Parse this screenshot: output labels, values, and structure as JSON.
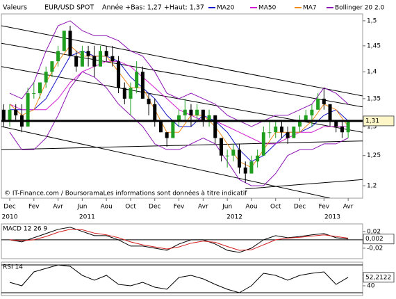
{
  "header": {
    "label": "Valeurs",
    "instrument": "EUR/USD SPOT",
    "range": "Année +Bas: 1,27 +Haut: 1,37"
  },
  "chart_data": [
    {
      "type": "candlestick",
      "x": [
        -0.5,
        0,
        0.5,
        1,
        1.5,
        2,
        2.5,
        3,
        3.5,
        4,
        4.5,
        5,
        5.5,
        6,
        6.5,
        7,
        7.5,
        8,
        8.5,
        9,
        9.5,
        10,
        10.5,
        11,
        11.5,
        12,
        12.5,
        13,
        13.5,
        14,
        14.5,
        15,
        15.5,
        16,
        16.5,
        17,
        17.5,
        18,
        18.5,
        19,
        19.5,
        20,
        20.5,
        21,
        21.5,
        22,
        22.5,
        23,
        23.5,
        24,
        24.5,
        25,
        25.5,
        26,
        26.5,
        27,
        27.5,
        28
      ],
      "open": [
        1.33,
        1.31,
        1.33,
        1.32,
        1.3,
        1.36,
        1.36,
        1.38,
        1.4,
        1.42,
        1.44,
        1.48,
        1.43,
        1.41,
        1.44,
        1.43,
        1.41,
        1.44,
        1.43,
        1.42,
        1.37,
        1.35,
        1.37,
        1.4,
        1.35,
        1.34,
        1.31,
        1.29,
        1.28,
        1.31,
        1.32,
        1.33,
        1.32,
        1.33,
        1.31,
        1.32,
        1.28,
        1.25,
        1.25,
        1.26,
        1.23,
        1.22,
        1.24,
        1.25,
        1.29,
        1.29,
        1.3,
        1.29,
        1.28,
        1.3,
        1.31,
        1.32,
        1.33,
        1.35,
        1.34,
        1.31,
        1.3,
        1.29
      ],
      "high": [
        1.34,
        1.34,
        1.34,
        1.34,
        1.37,
        1.38,
        1.38,
        1.41,
        1.42,
        1.45,
        1.48,
        1.49,
        1.44,
        1.45,
        1.45,
        1.45,
        1.45,
        1.45,
        1.45,
        1.43,
        1.38,
        1.38,
        1.42,
        1.41,
        1.36,
        1.35,
        1.31,
        1.29,
        1.31,
        1.33,
        1.35,
        1.34,
        1.34,
        1.33,
        1.33,
        1.32,
        1.28,
        1.26,
        1.27,
        1.27,
        1.24,
        1.25,
        1.26,
        1.3,
        1.31,
        1.31,
        1.31,
        1.3,
        1.3,
        1.32,
        1.33,
        1.34,
        1.36,
        1.37,
        1.34,
        1.31,
        1.31,
        1.31
      ],
      "low": [
        1.3,
        1.3,
        1.31,
        1.29,
        1.3,
        1.35,
        1.35,
        1.37,
        1.39,
        1.41,
        1.44,
        1.43,
        1.4,
        1.41,
        1.41,
        1.39,
        1.41,
        1.42,
        1.41,
        1.36,
        1.34,
        1.32,
        1.36,
        1.35,
        1.32,
        1.3,
        1.29,
        1.265,
        1.28,
        1.3,
        1.31,
        1.3,
        1.31,
        1.3,
        1.3,
        1.27,
        1.24,
        1.23,
        1.24,
        1.22,
        1.205,
        1.22,
        1.23,
        1.25,
        1.28,
        1.28,
        1.28,
        1.27,
        1.28,
        1.29,
        1.31,
        1.3,
        1.33,
        1.33,
        1.3,
        1.29,
        1.28,
        1.28
      ],
      "close": [
        1.31,
        1.33,
        1.32,
        1.3,
        1.36,
        1.36,
        1.38,
        1.4,
        1.42,
        1.44,
        1.48,
        1.43,
        1.41,
        1.44,
        1.43,
        1.41,
        1.44,
        1.43,
        1.42,
        1.37,
        1.35,
        1.37,
        1.4,
        1.35,
        1.34,
        1.31,
        1.29,
        1.28,
        1.31,
        1.32,
        1.33,
        1.32,
        1.33,
        1.31,
        1.32,
        1.28,
        1.25,
        1.25,
        1.26,
        1.23,
        1.22,
        1.24,
        1.25,
        1.29,
        1.29,
        1.3,
        1.29,
        1.28,
        1.3,
        1.31,
        1.32,
        1.33,
        1.35,
        1.34,
        1.31,
        1.3,
        1.29,
        1.31
      ],
      "up_color": "#1f9e1f",
      "down_color": "#000000",
      "xlim": [
        -0.69,
        29.2
      ],
      "xticks": [
        {
          "value": 0,
          "label": "Dec"
        },
        {
          "value": 2,
          "label": "Fev"
        },
        {
          "value": 4,
          "label": "Avr"
        },
        {
          "value": 6,
          "label": "Jun"
        },
        {
          "value": 8,
          "label": "Aou"
        },
        {
          "value": 10,
          "label": "Oct"
        },
        {
          "value": 12,
          "label": "Dec"
        },
        {
          "value": 14,
          "label": "Fev"
        },
        {
          "value": 16,
          "label": "Avr"
        },
        {
          "value": 18,
          "label": "Jun"
        },
        {
          "value": 20,
          "label": "Aou"
        },
        {
          "value": 22,
          "label": "Oct"
        },
        {
          "value": 24,
          "label": "Dec"
        },
        {
          "value": 26,
          "label": "Fev"
        },
        {
          "value": 28,
          "label": "Avr"
        }
      ],
      "year_labels": [
        {
          "value": 0,
          "label": "2010"
        },
        {
          "value": 6.4,
          "label": "2011"
        },
        {
          "value": 18.6,
          "label": "2012"
        },
        {
          "value": 26.7,
          "label": "2013"
        }
      ],
      "ylim": [
        1.18,
        1.514
      ],
      "log_scale": true,
      "yticks": [
        {
          "value": 1.2,
          "label": "1,2"
        },
        {
          "value": 1.25,
          "label": "1,25"
        },
        {
          "value": 1.3,
          "label": "1,3"
        },
        {
          "value": 1.35,
          "label": "1,35"
        },
        {
          "value": 1.4,
          "label": "1,4"
        },
        {
          "value": 1.45,
          "label": "1,45"
        },
        {
          "value": 1.5,
          "label": "1,5"
        }
      ],
      "overlay_x": [
        0,
        1,
        2,
        3,
        4,
        5,
        6,
        7,
        8,
        9,
        10,
        11,
        12,
        13,
        14,
        15,
        16,
        17,
        18,
        19,
        20,
        21,
        22,
        23,
        24,
        25,
        26,
        27,
        28
      ],
      "overlays": [
        {
          "name": "MA20",
          "color": "#1414c8",
          "values": [
            1.33,
            1.33,
            1.33,
            1.35,
            1.39,
            1.43,
            1.44,
            1.43,
            1.43,
            1.42,
            1.39,
            1.37,
            1.35,
            1.32,
            1.3,
            1.3,
            1.32,
            1.31,
            1.29,
            1.26,
            1.24,
            1.25,
            1.27,
            1.29,
            1.29,
            1.3,
            1.32,
            1.33,
            1.31
          ]
        },
        {
          "name": "MA50",
          "color": "#d21ed2",
          "values": [
            1.34,
            1.33,
            1.33,
            1.33,
            1.35,
            1.38,
            1.4,
            1.41,
            1.42,
            1.42,
            1.41,
            1.39,
            1.37,
            1.35,
            1.33,
            1.32,
            1.31,
            1.31,
            1.3,
            1.29,
            1.28,
            1.27,
            1.27,
            1.28,
            1.29,
            1.29,
            1.3,
            1.3,
            1.3
          ]
        },
        {
          "name": "MA7",
          "color": "#f08c1e",
          "values": [
            1.34,
            1.32,
            1.33,
            1.38,
            1.42,
            1.45,
            1.43,
            1.43,
            1.43,
            1.4,
            1.37,
            1.37,
            1.33,
            1.29,
            1.29,
            1.32,
            1.32,
            1.3,
            1.27,
            1.24,
            1.23,
            1.26,
            1.29,
            1.29,
            1.29,
            1.31,
            1.34,
            1.33,
            1.3
          ]
        }
      ],
      "bollinger": {
        "name": "Bollinger 20 2.0",
        "color": "#8c14b4",
        "upper": [
          1.36,
          1.35,
          1.38,
          1.44,
          1.49,
          1.5,
          1.48,
          1.47,
          1.47,
          1.46,
          1.44,
          1.43,
          1.4,
          1.36,
          1.35,
          1.36,
          1.35,
          1.34,
          1.32,
          1.31,
          1.3,
          1.31,
          1.32,
          1.32,
          1.33,
          1.34,
          1.37,
          1.36,
          1.34
        ],
        "lower": [
          1.29,
          1.26,
          1.26,
          1.28,
          1.32,
          1.37,
          1.4,
          1.39,
          1.37,
          1.34,
          1.32,
          1.3,
          1.27,
          1.26,
          1.26,
          1.27,
          1.28,
          1.27,
          1.24,
          1.21,
          1.2,
          1.2,
          1.22,
          1.25,
          1.26,
          1.26,
          1.27,
          1.27,
          1.28
        ]
      },
      "trend_lines": [
        {
          "x": [
            -0.69,
            29.2
          ],
          "y": [
            1.49,
            1.355
          ]
        },
        {
          "x": [
            -0.69,
            29.2
          ],
          "y": [
            1.455,
            1.335
          ]
        },
        {
          "x": [
            -0.69,
            29.2
          ],
          "y": [
            1.41,
            1.29
          ]
        },
        {
          "x": [
            -0.69,
            26.5
          ],
          "y": [
            1.3,
            1.18
          ]
        },
        {
          "x": [
            -0.69,
            29.2
          ],
          "y": [
            1.26,
            1.275
          ]
        },
        {
          "x": [
            19.5,
            29.2
          ],
          "y": [
            1.195,
            1.21
          ]
        }
      ],
      "current": {
        "value": 1.31,
        "label": "1,31"
      },
      "source": "© IT-Finance.com / BoursoramaLes informations sont données à titre indicatif"
    },
    {
      "type": "line",
      "title": "MACD 12 26 9",
      "x": [
        0,
        1,
        2,
        3,
        4,
        5,
        6,
        7,
        8,
        9,
        10,
        11,
        12,
        13,
        14,
        15,
        16,
        17,
        18,
        19,
        20,
        21,
        22,
        23,
        24,
        25,
        26,
        27,
        28
      ],
      "series": [
        {
          "color": "#000000",
          "values": [
            0,
            -0.005,
            0.005,
            0.015,
            0.025,
            0.03,
            0.02,
            0.01,
            0.01,
            0,
            -0.015,
            -0.015,
            -0.02,
            -0.025,
            -0.01,
            0,
            0,
            -0.01,
            -0.025,
            -0.03,
            -0.02,
            0,
            0.01,
            0.005,
            0.008,
            0.012,
            0.015,
            0.005,
            0.002
          ]
        },
        {
          "color": "#d21e1e",
          "values": [
            0,
            -0.002,
            0,
            0.008,
            0.018,
            0.025,
            0.024,
            0.016,
            0.012,
            0.005,
            -0.005,
            -0.012,
            -0.017,
            -0.022,
            -0.017,
            -0.008,
            -0.003,
            -0.006,
            -0.016,
            -0.025,
            -0.024,
            -0.012,
            0,
            0.004,
            0.006,
            0.009,
            0.012,
            0.008,
            0.004
          ]
        }
      ],
      "xlim": [
        -0.69,
        29.2
      ],
      "ylim": [
        -0.045,
        0.038
      ],
      "yticks": [
        {
          "value": 0.02,
          "label": "0,02"
        },
        {
          "value": -0.02,
          "label": "-0,02"
        }
      ],
      "levels": [
        0
      ],
      "current": {
        "value": 0.002,
        "label": "0,002"
      }
    },
    {
      "type": "line",
      "title": "RSI 14",
      "x": [
        0,
        1,
        2,
        3,
        4,
        5,
        6,
        7,
        8,
        9,
        10,
        11,
        12,
        13,
        14,
        15,
        16,
        17,
        18,
        19,
        20,
        21,
        22,
        23,
        24,
        25,
        26,
        27,
        28
      ],
      "series": [
        {
          "color": "#000000",
          "values": [
            45,
            40,
            60,
            65,
            70,
            68,
            55,
            48,
            55,
            42,
            40,
            45,
            38,
            35,
            52,
            55,
            50,
            42,
            35,
            30,
            40,
            58,
            55,
            48,
            55,
            58,
            60,
            42,
            52.2122
          ]
        }
      ],
      "xlim": [
        -0.69,
        29.2
      ],
      "ylim": [
        26,
        74
      ],
      "yticks": [
        40
      ],
      "levels": [
        30,
        70
      ],
      "current": {
        "value": 52.2122,
        "label": "52,2122"
      }
    }
  ]
}
